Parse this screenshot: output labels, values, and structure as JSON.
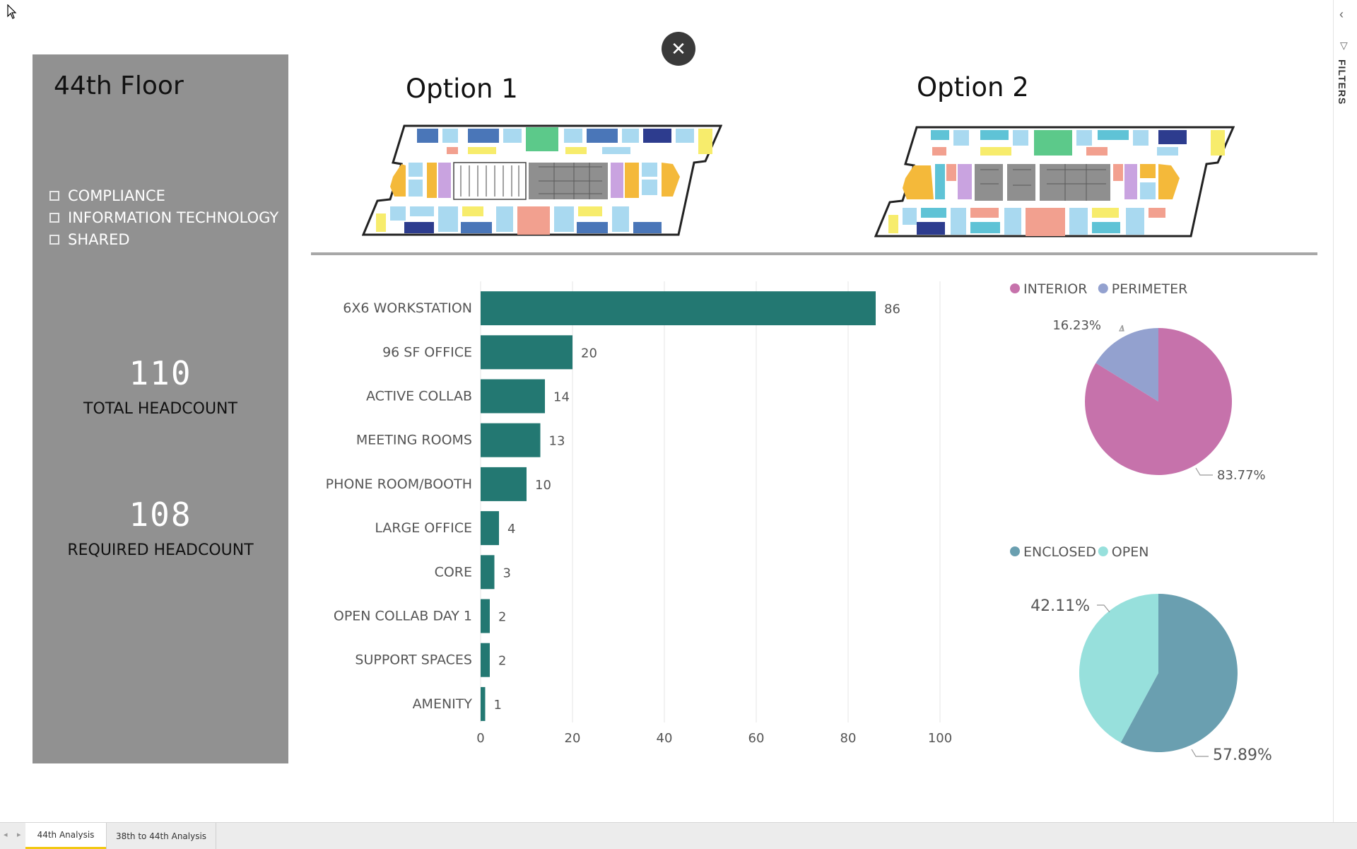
{
  "panel": {
    "floor_title": "44th Floor",
    "departments": [
      "COMPLIANCE",
      "INFORMATION TECHNOLOGY",
      "SHARED"
    ],
    "total_headcount": "110",
    "total_headcount_label": "TOTAL HEADCOUNT",
    "required_headcount": "108",
    "required_headcount_label": "REQUIRED HEADCOUNT"
  },
  "options": {
    "option1_title": "Option 1",
    "option2_title": "Option 2"
  },
  "filters_label": "FILTERS",
  "tabs": [
    "44th Analysis",
    "38th to 44th Analysis"
  ],
  "icons": {
    "cursor": "arrow-cursor-icon",
    "close": "close-icon",
    "collapse": "chevron-left-icon",
    "filter": "filter-funnel-icon",
    "prev": "triangle-left-icon",
    "next": "triangle-right-icon"
  },
  "colors": {
    "panel_bg": "#919191",
    "bar": "#237872",
    "interior": "#c672ab",
    "perimeter": "#93a1cf",
    "enclosed": "#6a9fb0",
    "open": "#97e0dc",
    "tab_active": "#f2c811"
  },
  "chart_data": [
    {
      "type": "bar",
      "orientation": "horizontal",
      "categories": [
        "6X6 WORKSTATION",
        "96 SF OFFICE",
        "ACTIVE COLLAB",
        "MEETING ROOMS",
        "PHONE ROOM/BOOTH",
        "LARGE OFFICE",
        "CORE",
        "OPEN COLLAB DAY 1",
        "SUPPORT SPACES",
        "AMENITY"
      ],
      "values": [
        86,
        20,
        14,
        13,
        10,
        4,
        3,
        2,
        2,
        1
      ],
      "xlim": [
        0,
        100
      ],
      "xticks": [
        0,
        20,
        40,
        60,
        80,
        100
      ],
      "grid": true
    },
    {
      "type": "pie",
      "legend": [
        "INTERIOR",
        "PERIMETER"
      ],
      "values": [
        83.77,
        16.23
      ],
      "labels": [
        "83.77%",
        "16.23%"
      ]
    },
    {
      "type": "pie",
      "legend": [
        "ENCLOSED",
        "OPEN"
      ],
      "values": [
        57.89,
        42.11
      ],
      "labels": [
        "57.89%",
        "42.11%"
      ]
    }
  ]
}
